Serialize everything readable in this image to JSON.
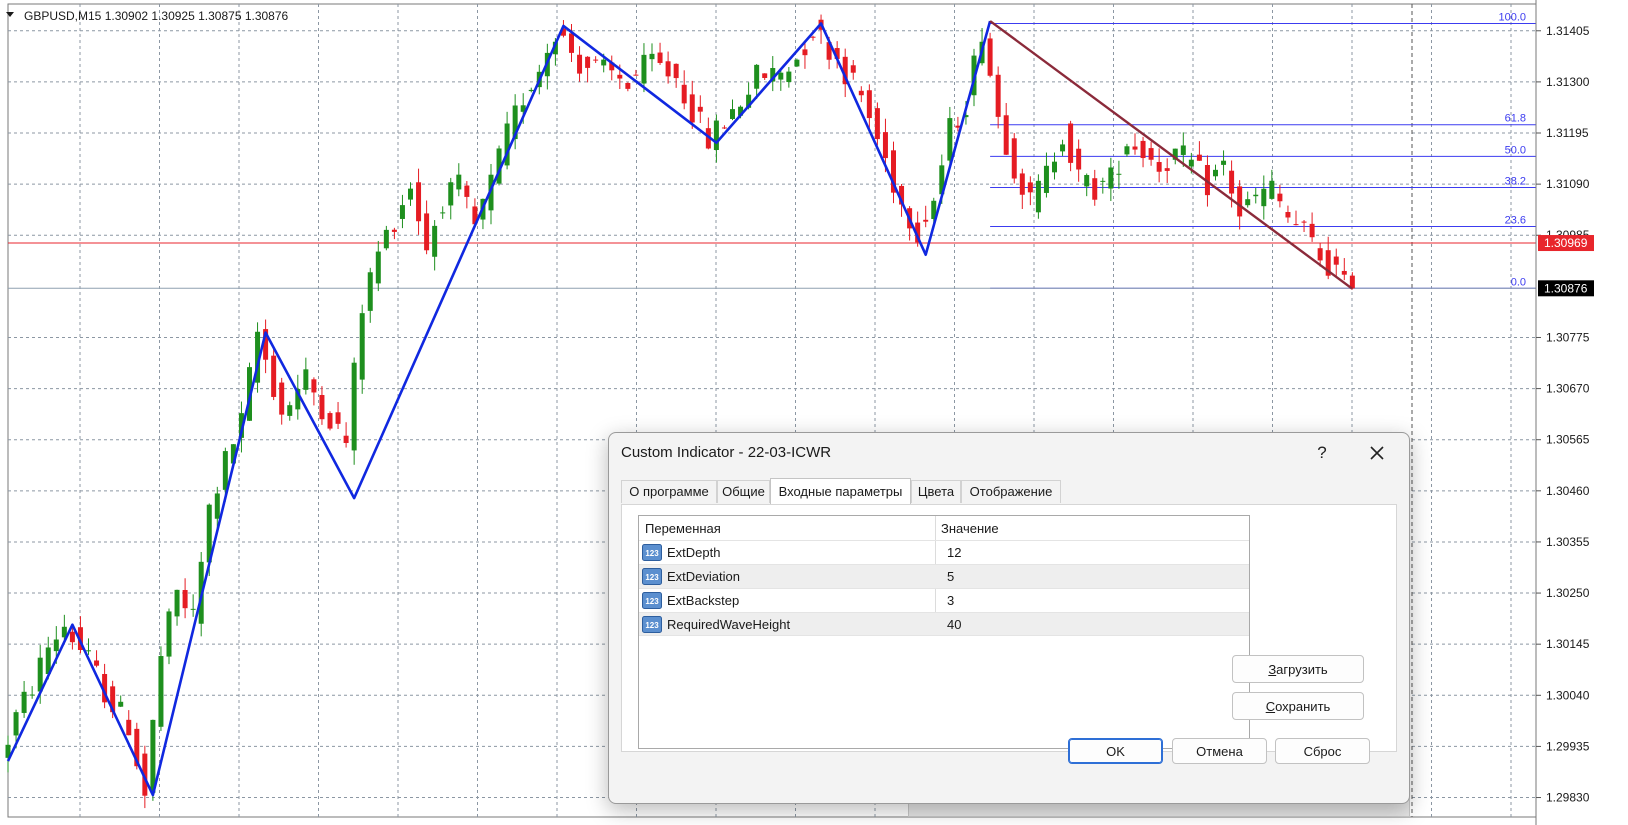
{
  "chart": {
    "title": "GBPUSD,M15  1.30902 1.30925 1.30875 1.30876",
    "price_labels": [
      {
        "value": 1.31405,
        "label": "1.31405"
      },
      {
        "value": 1.313,
        "label": "1.31300"
      },
      {
        "value": 1.31195,
        "label": "1.31195"
      },
      {
        "value": 1.3109,
        "label": "1.31090"
      },
      {
        "value": 1.30985,
        "label": "1.30985"
      },
      {
        "value": 1.30775,
        "label": "1.30775"
      },
      {
        "value": 1.3067,
        "label": "1.30670"
      },
      {
        "value": 1.30565,
        "label": "1.30565"
      },
      {
        "value": 1.3046,
        "label": "1.30460"
      },
      {
        "value": 1.30355,
        "label": "1.30355"
      },
      {
        "value": 1.3025,
        "label": "1.30250"
      },
      {
        "value": 1.30145,
        "label": "1.30145"
      },
      {
        "value": 1.3004,
        "label": "1.30040"
      },
      {
        "value": 1.29935,
        "label": "1.29935"
      },
      {
        "value": 1.2983,
        "label": "1.29830"
      }
    ],
    "y_range": [
      1.2979,
      1.3146
    ],
    "bid": {
      "value": 1.30969,
      "label": "1.30969",
      "color": "#e8262c"
    },
    "current": {
      "value": 1.30876,
      "label": "1.30876"
    },
    "colors": {
      "bull": "#1e8f1e",
      "bear": "#e51c23",
      "zigzag": "#1028e0",
      "fib": "#3c3cf0",
      "trend": "#8b2a3a",
      "grid": "#8c97a3"
    },
    "fib_levels": [
      {
        "label": "100.0",
        "value": 1.3142
      },
      {
        "label": "61.8",
        "value": 1.31212
      },
      {
        "label": "50.0",
        "value": 1.31147
      },
      {
        "label": "38.2",
        "value": 1.31083
      },
      {
        "label": "23.6",
        "value": 1.31003
      },
      {
        "label": "0.0",
        "value": 1.30876
      }
    ],
    "zigzag": [
      {
        "bar": 0,
        "price": 1.29905
      },
      {
        "bar": 8,
        "price": 1.30185
      },
      {
        "bar": 18,
        "price": 1.29835
      },
      {
        "bar": 32,
        "price": 1.30785
      },
      {
        "bar": 43,
        "price": 1.30445
      },
      {
        "bar": 69,
        "price": 1.31415
      },
      {
        "bar": 88,
        "price": 1.31175
      },
      {
        "bar": 101,
        "price": 1.3142
      },
      {
        "bar": 114,
        "price": 1.30945
      },
      {
        "bar": 122,
        "price": 1.31425
      }
    ],
    "trend_line": [
      {
        "bar": 122,
        "price": 1.31425
      },
      {
        "bar": 167,
        "price": 1.30875
      }
    ],
    "last_bar": 167,
    "anchors": [
      [
        0,
        1.29905
      ],
      [
        2,
        1.29995
      ],
      [
        4,
        1.3006
      ],
      [
        6,
        1.3014
      ],
      [
        8,
        1.30185
      ],
      [
        11,
        1.3011
      ],
      [
        14,
        1.3002
      ],
      [
        16,
        1.2998
      ],
      [
        18,
        1.29835
      ],
      [
        20,
        1.3012
      ],
      [
        22,
        1.3025
      ],
      [
        24,
        1.302
      ],
      [
        26,
        1.3042
      ],
      [
        28,
        1.3052
      ],
      [
        30,
        1.306
      ],
      [
        32,
        1.30785
      ],
      [
        35,
        1.3062
      ],
      [
        38,
        1.3069
      ],
      [
        41,
        1.3061
      ],
      [
        43,
        1.3056
      ],
      [
        45,
        1.3084
      ],
      [
        47,
        1.3095
      ],
      [
        49,
        1.3102
      ],
      [
        51,
        1.3109
      ],
      [
        53,
        1.3096
      ],
      [
        55,
        1.3106
      ],
      [
        57,
        1.3108
      ],
      [
        59,
        1.31
      ],
      [
        61,
        1.3109
      ],
      [
        63,
        1.3119
      ],
      [
        65,
        1.3127
      ],
      [
        67,
        1.3133
      ],
      [
        69,
        1.3141
      ],
      [
        72,
        1.3134
      ],
      [
        75,
        1.3132
      ],
      [
        78,
        1.313
      ],
      [
        81,
        1.3134
      ],
      [
        84,
        1.3131
      ],
      [
        87,
        1.3121
      ],
      [
        88,
        1.3118
      ],
      [
        91,
        1.3124
      ],
      [
        94,
        1.3131
      ],
      [
        97,
        1.3132
      ],
      [
        99,
        1.3135
      ],
      [
        101,
        1.3141
      ],
      [
        104,
        1.3135
      ],
      [
        107,
        1.3127
      ],
      [
        110,
        1.3114
      ],
      [
        112,
        1.3105
      ],
      [
        114,
        1.31
      ],
      [
        116,
        1.3106
      ],
      [
        118,
        1.312
      ],
      [
        120,
        1.3126
      ],
      [
        122,
        1.3141
      ],
      [
        124,
        1.3123
      ],
      [
        126,
        1.3113
      ],
      [
        128,
        1.3105
      ],
      [
        130,
        1.3111
      ],
      [
        132,
        1.312
      ],
      [
        134,
        1.311
      ],
      [
        136,
        1.3108
      ],
      [
        138,
        1.311
      ],
      [
        140,
        1.3118
      ],
      [
        142,
        1.3116
      ],
      [
        144,
        1.3113
      ],
      [
        146,
        1.3115
      ],
      [
        148,
        1.3113
      ],
      [
        150,
        1.3109
      ],
      [
        152,
        1.3113
      ],
      [
        154,
        1.3103
      ],
      [
        156,
        1.3106
      ],
      [
        158,
        1.3108
      ],
      [
        160,
        1.3102
      ],
      [
        162,
        1.3099
      ],
      [
        164,
        1.3094
      ],
      [
        166,
        1.3091
      ],
      [
        167,
        1.30876
      ]
    ]
  },
  "dialog": {
    "title": "Custom Indicator - 22-03-ICWR",
    "help_label": "?",
    "tabs": [
      "О программе",
      "Общие",
      "Входные параметры",
      "Цвета",
      "Отображение"
    ],
    "active_tab": 2,
    "headers": {
      "variable": "Переменная",
      "value": "Значение"
    },
    "params": [
      {
        "icon": "123",
        "name": "ExtDepth",
        "value": "12"
      },
      {
        "icon": "123",
        "name": "ExtDeviation",
        "value": "5"
      },
      {
        "icon": "123",
        "name": "ExtBackstep",
        "value": "3"
      },
      {
        "icon": "123",
        "name": "RequiredWaveHeight",
        "value": "40"
      }
    ],
    "buttons": {
      "load_accel": "З",
      "load_rest": "агрузить",
      "save_accel": "С",
      "save_rest": "охранить",
      "ok": "OK",
      "cancel": "Отмена",
      "reset": "Сброс"
    }
  }
}
